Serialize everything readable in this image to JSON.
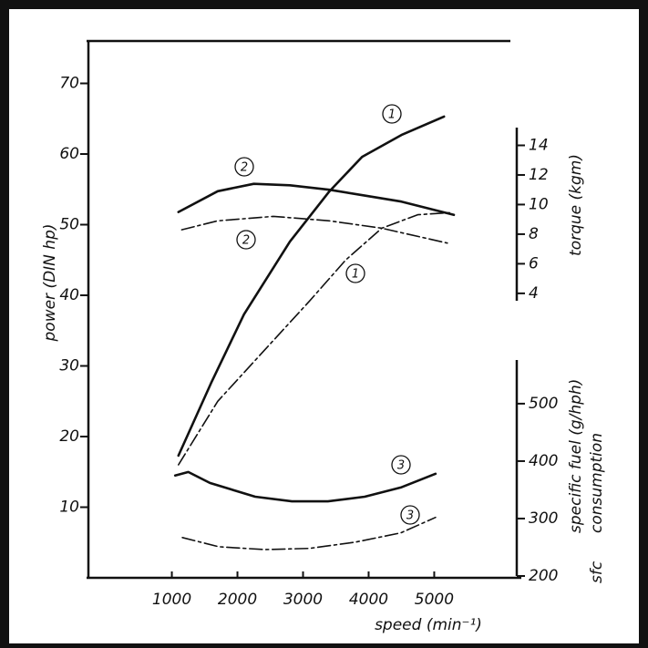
{
  "chart_data": {
    "type": "line",
    "x_label": "speed (min⁻¹)",
    "y_label": "power (DIN hp)",
    "y2_label": "torque (kgm)",
    "y3_label_lines": [
      "specific fuel (g/hph)",
      "consumption"
    ],
    "y3_abbrev": "sfc",
    "xlim": [
      -300,
      6300
    ],
    "xticks": [
      1000,
      2000,
      3000,
      4000,
      5000
    ],
    "ylim": [
      0,
      76
    ],
    "yticks": [
      10,
      20,
      30,
      40,
      50,
      60,
      70
    ],
    "y2lim": [
      3.5,
      15.2
    ],
    "y2ticks": [
      4,
      6,
      8,
      10,
      12,
      14
    ],
    "y3lim": [
      200,
      576
    ],
    "y3ticks": [
      200,
      300,
      400,
      500
    ],
    "series": [
      {
        "label": "1",
        "axis": "y",
        "style": "solid",
        "color": "#111111",
        "x": [
          1100,
          1600,
          2100,
          2800,
          3400,
          3900,
          4500,
          5150
        ],
        "values": [
          17.3,
          27.6,
          37.3,
          47.6,
          54.7,
          59.6,
          62.7,
          65.3
        ]
      },
      {
        "label": "1",
        "axis": "y",
        "style": "dashdot",
        "color": "#111111",
        "x": [
          1100,
          1700,
          2400,
          3100,
          3650,
          4200,
          4750,
          5250
        ],
        "values": [
          16.0,
          25.0,
          32.1,
          39.2,
          45.0,
          49.5,
          51.4,
          51.7
        ]
      },
      {
        "label": "2",
        "axis": "y2",
        "style": "solid",
        "color": "#111111",
        "x": [
          1100,
          1700,
          2250,
          2800,
          3400,
          3950,
          4500,
          5300
        ],
        "values": [
          9.5,
          10.9,
          11.4,
          11.3,
          11.0,
          10.6,
          10.2,
          9.3
        ]
      },
      {
        "label": "2",
        "axis": "y2",
        "style": "dashdot",
        "color": "#111111",
        "x": [
          1150,
          1700,
          2550,
          3400,
          4200,
          5200
        ],
        "values": [
          8.3,
          8.9,
          9.2,
          8.9,
          8.4,
          7.4
        ]
      },
      {
        "label": "3",
        "axis": "y3",
        "style": "solid",
        "color": "#111111",
        "x": [
          1050,
          1250,
          1580,
          2270,
          2830,
          3380,
          3940,
          4490,
          5020
        ],
        "values": [
          375,
          381,
          362,
          338,
          330,
          330,
          338,
          354,
          378
        ]
      },
      {
        "label": "3",
        "axis": "y3",
        "style": "dashdot",
        "color": "#111111",
        "x": [
          1160,
          1715,
          2410,
          3100,
          3800,
          4490,
          5020
        ],
        "values": [
          267,
          251,
          246,
          248,
          259,
          275,
          302
        ]
      }
    ]
  }
}
